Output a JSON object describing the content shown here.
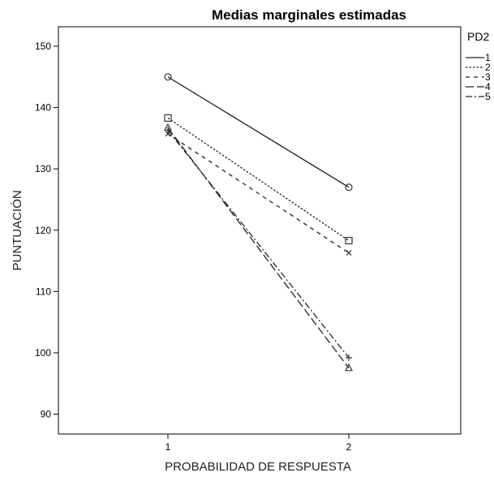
{
  "chart_data": {
    "type": "line",
    "title": "Medias marginales estimadas",
    "xlabel": "PROBABILIDAD DE RESPUESTA",
    "ylabel": "PUNTUACIÓN",
    "categories": [
      "1",
      "2"
    ],
    "ylim": [
      87,
      154
    ],
    "yticks": [
      90,
      100,
      110,
      120,
      130,
      140,
      150
    ],
    "grid": false,
    "legend": {
      "title": "PD2",
      "placement": "top-right"
    },
    "series": [
      {
        "name": "1",
        "values": [
          145.0,
          127.0
        ],
        "line": "solid",
        "marker": "circle"
      },
      {
        "name": "2",
        "values": [
          138.3,
          118.3
        ],
        "line": "dotted",
        "marker": "square"
      },
      {
        "name": "3",
        "values": [
          135.7,
          116.3
        ],
        "line": "dashed-short",
        "marker": "x"
      },
      {
        "name": "4",
        "values": [
          136.7,
          97.5
        ],
        "line": "dashed-long",
        "marker": "triangle"
      },
      {
        "name": "5",
        "values": [
          136.3,
          99.2
        ],
        "line": "dash-dot",
        "marker": "plus"
      }
    ]
  }
}
